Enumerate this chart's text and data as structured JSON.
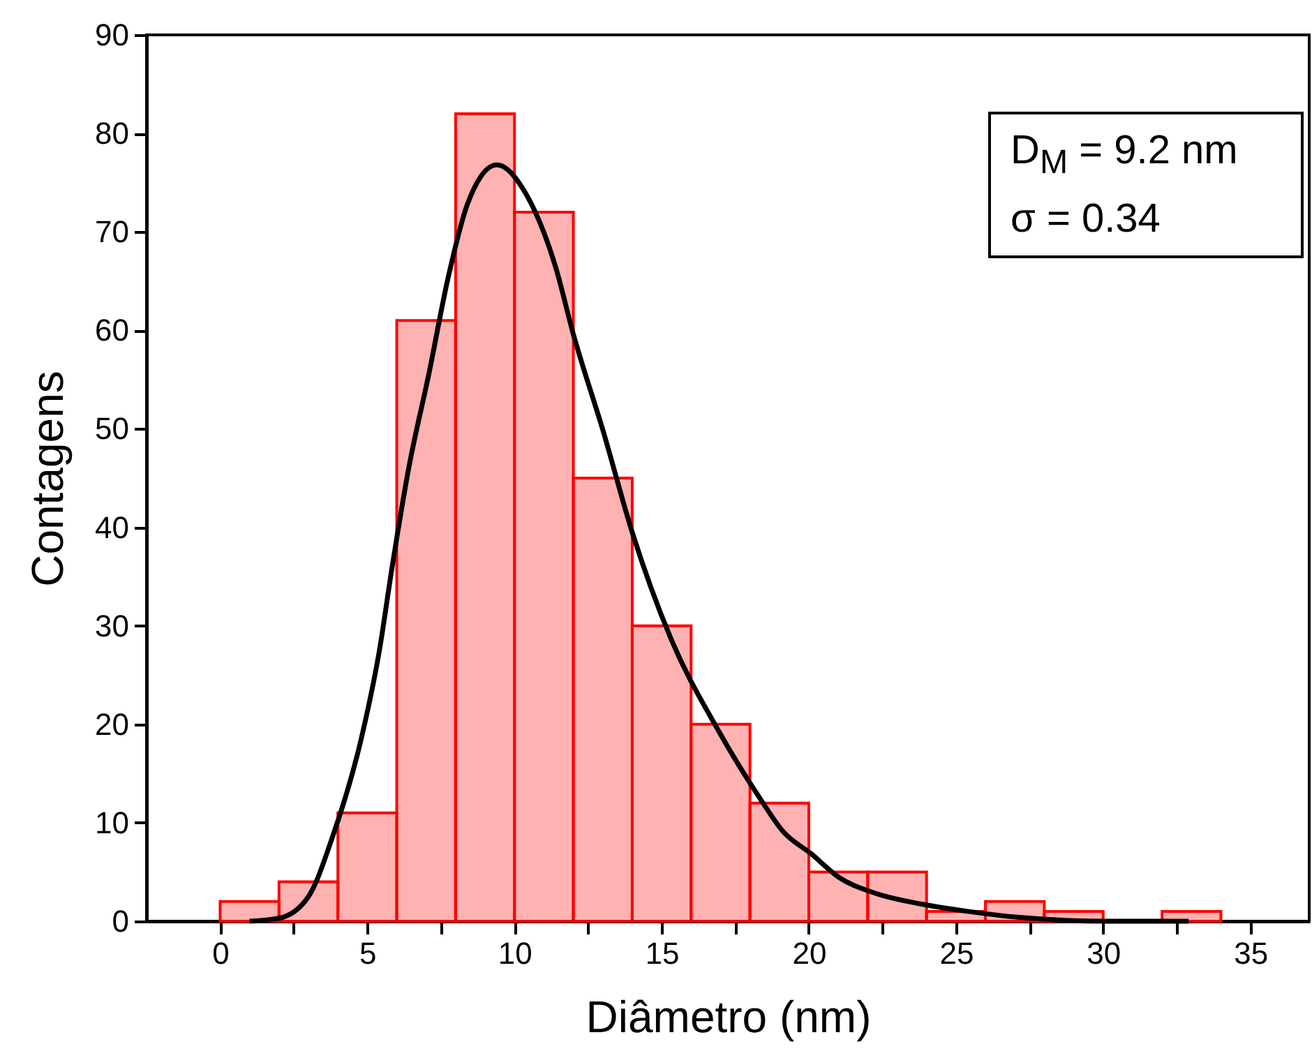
{
  "chart_data": {
    "type": "histogram",
    "xlabel": "Diâmetro (nm)",
    "ylabel": "Contagens",
    "xlim": [
      -2.5,
      37
    ],
    "ylim": [
      0,
      90
    ],
    "xticks": [
      0,
      {
        "value": 2.5,
        "label": null
      },
      5,
      {
        "value": 7.5,
        "label": null
      },
      10,
      {
        "value": 12.5,
        "label": null
      },
      15,
      {
        "value": 17.5,
        "label": null
      },
      20,
      {
        "value": 22.5,
        "label": null
      },
      25,
      {
        "value": 27.5,
        "label": null
      },
      30,
      {
        "value": 32.5,
        "label": null
      },
      35
    ],
    "yticks": [
      0,
      10,
      20,
      30,
      40,
      50,
      60,
      70,
      80,
      90
    ],
    "series": [
      {
        "color": "#ff0000",
        "bins": [
          0,
          2,
          4,
          6,
          8,
          10,
          12,
          14,
          16,
          18,
          20,
          22,
          24,
          26,
          28,
          30,
          32,
          34
        ],
        "values": [
          2,
          4,
          11,
          61,
          82,
          72,
          45,
          30,
          20,
          12,
          5,
          5,
          1,
          2,
          1,
          0,
          1
        ]
      },
      {
        "type": "line",
        "color": "#000000",
        "x": [
          1.0,
          2.0,
          3.0,
          3.8,
          4.8,
          5.4,
          5.85,
          6.4,
          7.1,
          7.75,
          8.4,
          9.4,
          10.4,
          11.4,
          12.0,
          13.0,
          14.0,
          15.3,
          16.9,
          18.4,
          19.1,
          20.1,
          21.0,
          22.3,
          23.9,
          25.4,
          27.1,
          28.6,
          30.2,
          32.9
        ],
        "values": [
          0,
          0.3,
          2.5,
          8.4,
          18.6,
          27.3,
          36.1,
          45.9,
          55.7,
          65.4,
          72.8,
          76.8,
          73.8,
          66.4,
          59.6,
          49.9,
          39.5,
          28.8,
          19.5,
          12.2,
          9.2,
          6.8,
          4.5,
          2.8,
          1.7,
          1.0,
          0.4,
          0.1,
          0,
          0
        ]
      }
    ],
    "annotations": [
      "D$_{M}$ = 9.2 nm",
      "σ = 0.34"
    ]
  }
}
